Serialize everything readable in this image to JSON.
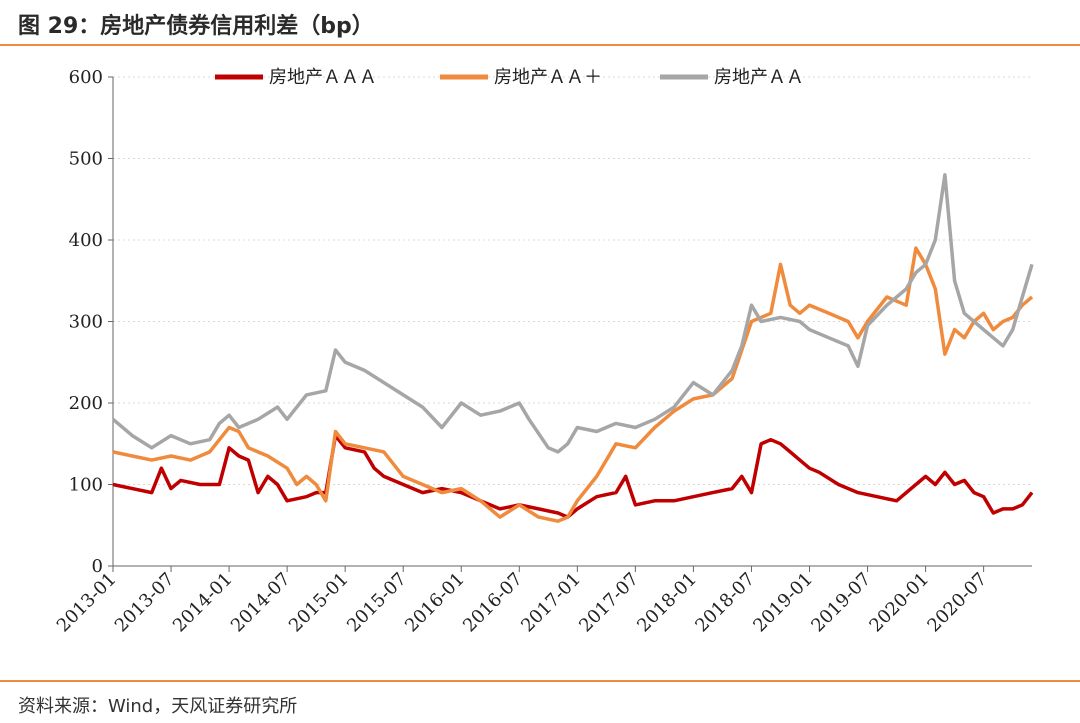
{
  "header": {
    "title": "图 29：房地产债券信用利差（bp）"
  },
  "footer": {
    "source": "资料来源：Wind，天风证券研究所"
  },
  "chart_data": {
    "type": "line",
    "title": "图 29：房地产债券信用利差（bp）",
    "xlabel": "",
    "ylabel": "",
    "ylim": [
      0,
      600
    ],
    "yticks": [
      0,
      100,
      200,
      300,
      400,
      500,
      600
    ],
    "xticks": [
      "2013-01",
      "2013-07",
      "2014-01",
      "2014-07",
      "2015-01",
      "2015-07",
      "2016-01",
      "2016-07",
      "2017-01",
      "2017-07",
      "2018-01",
      "2018-07",
      "2019-01",
      "2019-07",
      "2020-01",
      "2020-07"
    ],
    "legend_position": "top",
    "grid": true,
    "series": [
      {
        "name": "房地产ＡＡＡ",
        "color": "#c00000",
        "points": [
          [
            "2013-01",
            100
          ],
          [
            "2013-03",
            95
          ],
          [
            "2013-05",
            90
          ],
          [
            "2013-06",
            120
          ],
          [
            "2013-07",
            95
          ],
          [
            "2013-08",
            105
          ],
          [
            "2013-10",
            100
          ],
          [
            "2013-12",
            100
          ],
          [
            "2014-01",
            145
          ],
          [
            "2014-02",
            135
          ],
          [
            "2014-03",
            130
          ],
          [
            "2014-04",
            90
          ],
          [
            "2014-05",
            110
          ],
          [
            "2014-06",
            100
          ],
          [
            "2014-07",
            80
          ],
          [
            "2014-09",
            85
          ],
          [
            "2014-10",
            90
          ],
          [
            "2014-11",
            90
          ],
          [
            "2014-12",
            160
          ],
          [
            "2015-01",
            145
          ],
          [
            "2015-03",
            140
          ],
          [
            "2015-04",
            120
          ],
          [
            "2015-05",
            110
          ],
          [
            "2015-07",
            100
          ],
          [
            "2015-09",
            90
          ],
          [
            "2015-11",
            95
          ],
          [
            "2016-01",
            90
          ],
          [
            "2016-03",
            80
          ],
          [
            "2016-05",
            70
          ],
          [
            "2016-07",
            75
          ],
          [
            "2016-09",
            70
          ],
          [
            "2016-11",
            65
          ],
          [
            "2016-12",
            60
          ],
          [
            "2017-01",
            70
          ],
          [
            "2017-03",
            85
          ],
          [
            "2017-05",
            90
          ],
          [
            "2017-06",
            110
          ],
          [
            "2017-07",
            75
          ],
          [
            "2017-09",
            80
          ],
          [
            "2017-11",
            80
          ],
          [
            "2018-01",
            85
          ],
          [
            "2018-03",
            90
          ],
          [
            "2018-05",
            95
          ],
          [
            "2018-06",
            110
          ],
          [
            "2018-07",
            90
          ],
          [
            "2018-08",
            150
          ],
          [
            "2018-09",
            155
          ],
          [
            "2018-10",
            150
          ],
          [
            "2018-11",
            140
          ],
          [
            "2018-12",
            130
          ],
          [
            "2019-01",
            120
          ],
          [
            "2019-02",
            115
          ],
          [
            "2019-04",
            100
          ],
          [
            "2019-06",
            90
          ],
          [
            "2019-08",
            85
          ],
          [
            "2019-10",
            80
          ],
          [
            "2019-12",
            100
          ],
          [
            "2020-01",
            110
          ],
          [
            "2020-02",
            100
          ],
          [
            "2020-03",
            115
          ],
          [
            "2020-04",
            100
          ],
          [
            "2020-05",
            105
          ],
          [
            "2020-06",
            90
          ],
          [
            "2020-07",
            85
          ],
          [
            "2020-08",
            65
          ],
          [
            "2020-09",
            70
          ],
          [
            "2020-10",
            70
          ],
          [
            "2020-11",
            75
          ],
          [
            "2020-12",
            90
          ]
        ]
      },
      {
        "name": "房地产ＡＡ＋",
        "color": "#f08a3c",
        "points": [
          [
            "2013-01",
            140
          ],
          [
            "2013-03",
            135
          ],
          [
            "2013-05",
            130
          ],
          [
            "2013-07",
            135
          ],
          [
            "2013-09",
            130
          ],
          [
            "2013-11",
            140
          ],
          [
            "2013-12",
            155
          ],
          [
            "2014-01",
            170
          ],
          [
            "2014-02",
            165
          ],
          [
            "2014-03",
            145
          ],
          [
            "2014-05",
            135
          ],
          [
            "2014-07",
            120
          ],
          [
            "2014-08",
            100
          ],
          [
            "2014-09",
            110
          ],
          [
            "2014-10",
            100
          ],
          [
            "2014-11",
            80
          ],
          [
            "2014-12",
            165
          ],
          [
            "2015-01",
            150
          ],
          [
            "2015-03",
            145
          ],
          [
            "2015-05",
            140
          ],
          [
            "2015-07",
            110
          ],
          [
            "2015-09",
            100
          ],
          [
            "2015-11",
            90
          ],
          [
            "2016-01",
            95
          ],
          [
            "2016-03",
            80
          ],
          [
            "2016-05",
            60
          ],
          [
            "2016-07",
            75
          ],
          [
            "2016-09",
            60
          ],
          [
            "2016-11",
            55
          ],
          [
            "2016-12",
            60
          ],
          [
            "2017-01",
            80
          ],
          [
            "2017-03",
            110
          ],
          [
            "2017-05",
            150
          ],
          [
            "2017-07",
            145
          ],
          [
            "2017-09",
            170
          ],
          [
            "2017-11",
            190
          ],
          [
            "2018-01",
            205
          ],
          [
            "2018-03",
            210
          ],
          [
            "2018-05",
            230
          ],
          [
            "2018-07",
            300
          ],
          [
            "2018-09",
            310
          ],
          [
            "2018-10",
            370
          ],
          [
            "2018-11",
            320
          ],
          [
            "2018-12",
            310
          ],
          [
            "2019-01",
            320
          ],
          [
            "2019-03",
            310
          ],
          [
            "2019-05",
            300
          ],
          [
            "2019-06",
            280
          ],
          [
            "2019-07",
            300
          ],
          [
            "2019-09",
            330
          ],
          [
            "2019-11",
            320
          ],
          [
            "2019-12",
            390
          ],
          [
            "2020-01",
            370
          ],
          [
            "2020-02",
            340
          ],
          [
            "2020-03",
            260
          ],
          [
            "2020-04",
            290
          ],
          [
            "2020-05",
            280
          ],
          [
            "2020-06",
            300
          ],
          [
            "2020-07",
            310
          ],
          [
            "2020-08",
            290
          ],
          [
            "2020-09",
            300
          ],
          [
            "2020-10",
            305
          ],
          [
            "2020-11",
            320
          ],
          [
            "2020-12",
            330
          ]
        ]
      },
      {
        "name": "房地产ＡＡ",
        "color": "#a6a6a6",
        "points": [
          [
            "2013-01",
            180
          ],
          [
            "2013-03",
            160
          ],
          [
            "2013-05",
            145
          ],
          [
            "2013-07",
            160
          ],
          [
            "2013-09",
            150
          ],
          [
            "2013-11",
            155
          ],
          [
            "2013-12",
            175
          ],
          [
            "2014-01",
            185
          ],
          [
            "2014-02",
            170
          ],
          [
            "2014-04",
            180
          ],
          [
            "2014-06",
            195
          ],
          [
            "2014-07",
            180
          ],
          [
            "2014-09",
            210
          ],
          [
            "2014-11",
            215
          ],
          [
            "2014-12",
            265
          ],
          [
            "2015-01",
            250
          ],
          [
            "2015-03",
            240
          ],
          [
            "2015-05",
            225
          ],
          [
            "2015-07",
            210
          ],
          [
            "2015-09",
            195
          ],
          [
            "2015-11",
            170
          ],
          [
            "2016-01",
            200
          ],
          [
            "2016-03",
            185
          ],
          [
            "2016-05",
            190
          ],
          [
            "2016-07",
            200
          ],
          [
            "2016-08",
            180
          ],
          [
            "2016-10",
            145
          ],
          [
            "2016-11",
            140
          ],
          [
            "2016-12",
            150
          ],
          [
            "2017-01",
            170
          ],
          [
            "2017-03",
            165
          ],
          [
            "2017-05",
            175
          ],
          [
            "2017-07",
            170
          ],
          [
            "2017-09",
            180
          ],
          [
            "2017-11",
            195
          ],
          [
            "2018-01",
            225
          ],
          [
            "2018-03",
            210
          ],
          [
            "2018-05",
            240
          ],
          [
            "2018-06",
            270
          ],
          [
            "2018-07",
            320
          ],
          [
            "2018-08",
            300
          ],
          [
            "2018-10",
            305
          ],
          [
            "2018-12",
            300
          ],
          [
            "2019-01",
            290
          ],
          [
            "2019-03",
            280
          ],
          [
            "2019-05",
            270
          ],
          [
            "2019-06",
            245
          ],
          [
            "2019-07",
            295
          ],
          [
            "2019-09",
            320
          ],
          [
            "2019-11",
            340
          ],
          [
            "2019-12",
            360
          ],
          [
            "2020-01",
            370
          ],
          [
            "2020-02",
            400
          ],
          [
            "2020-03",
            480
          ],
          [
            "2020-04",
            350
          ],
          [
            "2020-05",
            310
          ],
          [
            "2020-06",
            300
          ],
          [
            "2020-07",
            290
          ],
          [
            "2020-08",
            280
          ],
          [
            "2020-09",
            270
          ],
          [
            "2020-10",
            290
          ],
          [
            "2020-11",
            330
          ],
          [
            "2020-12",
            370
          ]
        ]
      }
    ]
  }
}
